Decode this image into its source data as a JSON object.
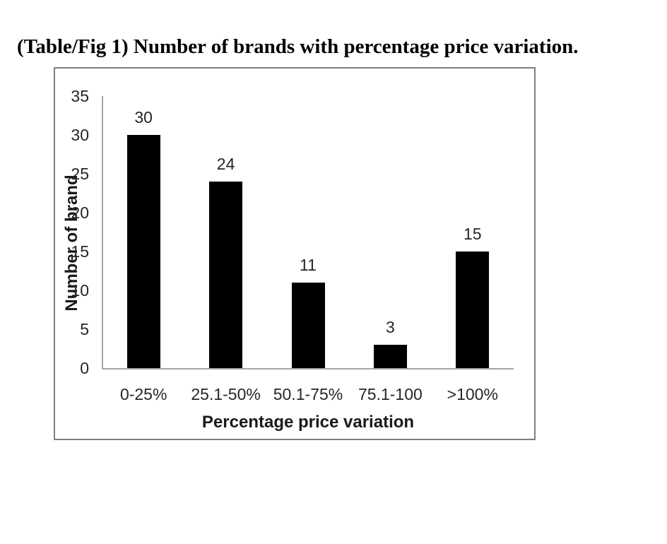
{
  "caption": "(Table/Fig 1) Number of brands with percentage price variation.",
  "chart_data": {
    "type": "bar",
    "title": "",
    "categories": [
      "0-25%",
      "25.1-50%",
      "50.1-75%",
      "75.1-100",
      ">100%"
    ],
    "values": [
      30,
      24,
      11,
      3,
      15
    ],
    "value_labels": [
      "30",
      "24",
      "11",
      "3",
      "15"
    ],
    "xlabel": "Percentage price variation",
    "ylabel": "Number of brand",
    "ylim": [
      0,
      35
    ],
    "yticks": [
      0,
      5,
      10,
      15,
      20,
      25,
      30,
      35
    ],
    "bar_color": "#000000",
    "axis_color": "#a6a6a6",
    "frame_border_color": "#7f7f7f",
    "text_color": "#262626",
    "grid": false,
    "legend": false
  }
}
